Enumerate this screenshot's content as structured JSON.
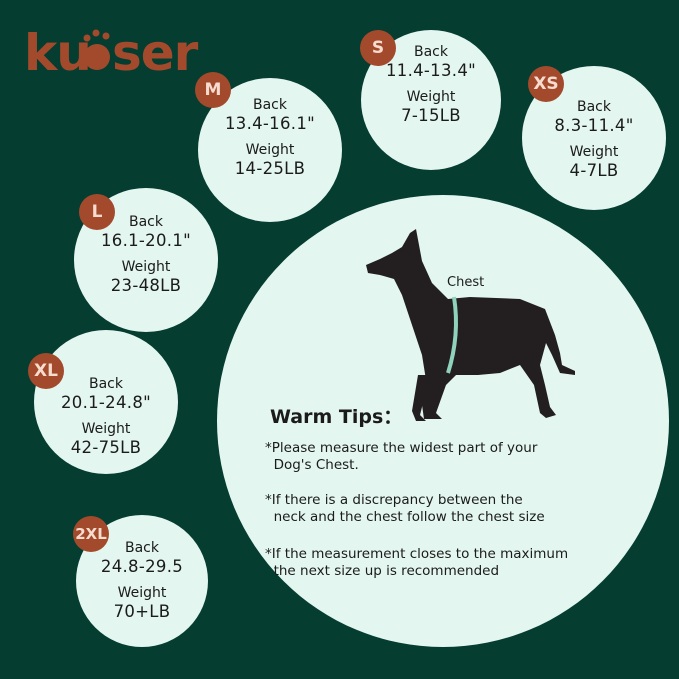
{
  "brand": {
    "logo_text": "kuoser",
    "color": "#a34a2c"
  },
  "colors": {
    "background": "#063d31",
    "circle": "#e3f6f0",
    "badge": "#a34a2c"
  },
  "sizes": [
    {
      "size": "M",
      "back_label": "Back",
      "back": "13.4-16.1\"",
      "weight_label": "Weight",
      "weight": "14-25LB"
    },
    {
      "size": "S",
      "back_label": "Back",
      "back": "11.4-13.4\"",
      "weight_label": "Weight",
      "weight": "7-15LB"
    },
    {
      "size": "XS",
      "back_label": "Back",
      "back": "8.3-11.4\"",
      "weight_label": "Weight",
      "weight": "4-7LB"
    },
    {
      "size": "L",
      "back_label": "Back",
      "back": "16.1-20.1\"",
      "weight_label": "Weight",
      "weight": "23-48LB"
    },
    {
      "size": "XL",
      "back_label": "Back",
      "back": "20.1-24.8\"",
      "weight_label": "Weight",
      "weight": "42-75LB"
    },
    {
      "size": "2XL",
      "back_label": "Back",
      "back": "24.8-29.5",
      "weight_label": "Weight",
      "weight": "70+LB"
    }
  ],
  "diagram": {
    "chest_label": "Chest",
    "icon": "dog-silhouette-icon"
  },
  "tips": {
    "title": "Warm Tips：",
    "items": [
      "*Please measure the widest part of your\n  Dog's Chest.",
      "*If there is a discrepancy between the\n  neck and the chest follow the chest size",
      "*If the measurement closes to the maximum\n  the next size up is recommended"
    ]
  }
}
